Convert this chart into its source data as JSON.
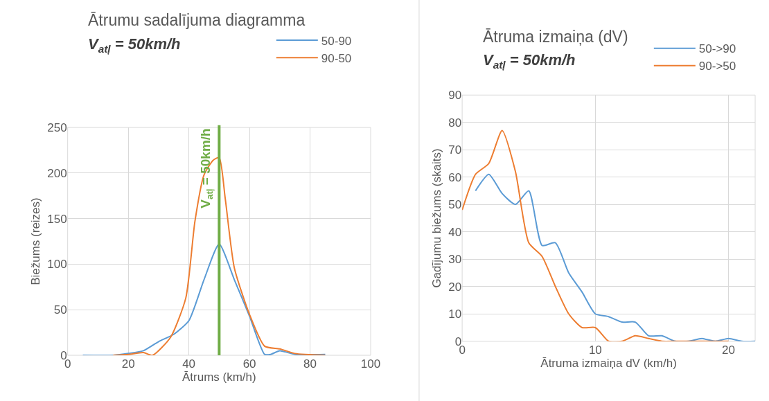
{
  "chart_data": [
    {
      "type": "line",
      "title": "Ātrumu sadalījuma diagramma",
      "subtitle": "V$_{atļ}$ = 50km/h",
      "xlabel": "Ātrums (km/h)",
      "ylabel": "Biežums (reizes)",
      "xlim": [
        0,
        100
      ],
      "xticks": [
        0,
        20,
        40,
        60,
        80,
        100
      ],
      "ylim": [
        0,
        250
      ],
      "yticks": [
        0,
        50,
        100,
        150,
        200,
        250
      ],
      "grid": true,
      "legend": "top right",
      "ref_lines": [
        {
          "axis": "x",
          "value": 50,
          "label": "V$_{atļ}$ = 50km/h",
          "color": "#70ad47"
        }
      ],
      "series": [
        {
          "name": "50-90",
          "color": "#5b9bd5",
          "x": [
            5,
            15,
            20,
            25,
            30,
            35,
            40,
            45,
            50,
            55,
            60,
            65,
            67,
            70,
            75,
            85
          ],
          "values": [
            0,
            0,
            2,
            5,
            15,
            23,
            38,
            83,
            122,
            83,
            43,
            1,
            1,
            5,
            1,
            1
          ]
        },
        {
          "name": "90-50",
          "color": "#ed7d31",
          "x": [
            15,
            20,
            25,
            28,
            34,
            39,
            42,
            45,
            48,
            50,
            52,
            55,
            60,
            65,
            70,
            75,
            85
          ],
          "values": [
            0,
            1,
            3,
            0,
            20,
            63,
            147,
            198,
            214,
            217,
            172,
            96,
            45,
            10,
            7,
            2,
            0
          ]
        }
      ]
    },
    {
      "type": "line",
      "title": "Ātruma izmaiņa (dV)",
      "subtitle": "V$_{atļ}$ = 50km/h",
      "xlabel": "Ātruma izmaiņa dV (km/h)",
      "ylabel": "Gadījumu biežums (skaits)",
      "xlim": [
        0,
        22
      ],
      "xticks": [
        0,
        10,
        20
      ],
      "ylim": [
        0,
        90
      ],
      "yticks": [
        0,
        10,
        20,
        30,
        40,
        50,
        60,
        70,
        80,
        90
      ],
      "grid": true,
      "legend": "top right",
      "series": [
        {
          "name": "50->90",
          "color": "#5b9bd5",
          "x": [
            1,
            2,
            3,
            4,
            5,
            6,
            7,
            8,
            9,
            10,
            11,
            12,
            13,
            14,
            15,
            16,
            17,
            18,
            19,
            20,
            21,
            22
          ],
          "values": [
            55,
            61,
            54,
            50,
            55,
            35,
            36,
            25,
            18,
            10,
            9,
            7,
            7,
            2,
            2,
            0,
            0,
            1,
            0,
            1,
            0,
            0
          ]
        },
        {
          "name": "90->50",
          "color": "#ed7d31",
          "x": [
            0,
            1,
            2,
            3,
            4,
            5,
            6,
            7,
            8,
            9,
            10,
            11,
            12,
            13,
            14,
            15,
            16,
            17,
            18,
            19,
            20
          ],
          "values": [
            48,
            61,
            65,
            77,
            62,
            36,
            31,
            20,
            10,
            5,
            5,
            0,
            0,
            2,
            1,
            0,
            0,
            0,
            0,
            0,
            0
          ]
        }
      ]
    }
  ]
}
